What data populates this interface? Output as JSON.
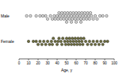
{
  "chart_data": {
    "type": "strip",
    "x_label": "Age, y",
    "xlim": [
      0,
      100
    ],
    "xticks": [
      0,
      10,
      20,
      30,
      40,
      50,
      60,
      70,
      80,
      90,
      100
    ],
    "series": [
      {
        "name": "Male",
        "color": "#d9d9d9",
        "values": [
          8,
          12,
          18,
          22,
          25,
          28,
          30,
          33,
          35,
          37,
          38,
          40,
          41,
          42,
          43,
          44,
          45,
          46,
          47,
          48,
          49,
          50,
          50,
          51,
          52,
          53,
          54,
          55,
          55,
          56,
          57,
          58,
          59,
          60,
          60,
          61,
          62,
          63,
          64,
          65,
          65,
          66,
          67,
          68,
          69,
          70,
          71,
          72,
          73,
          74,
          75,
          76,
          78,
          80,
          82,
          85,
          88,
          92
        ]
      },
      {
        "name": "Female",
        "color": "#6b6b3a",
        "values": [
          10,
          15,
          18,
          20,
          22,
          24,
          26,
          28,
          30,
          32,
          34,
          35,
          36,
          38,
          40,
          41,
          42,
          44,
          45,
          46,
          48,
          49,
          50,
          51,
          52,
          53,
          54,
          55,
          56,
          57,
          58,
          59,
          60,
          61,
          62,
          63,
          64,
          65,
          66,
          67,
          68,
          70,
          72,
          74,
          76,
          78,
          80,
          82,
          84,
          86,
          88,
          90,
          93
        ]
      }
    ]
  }
}
